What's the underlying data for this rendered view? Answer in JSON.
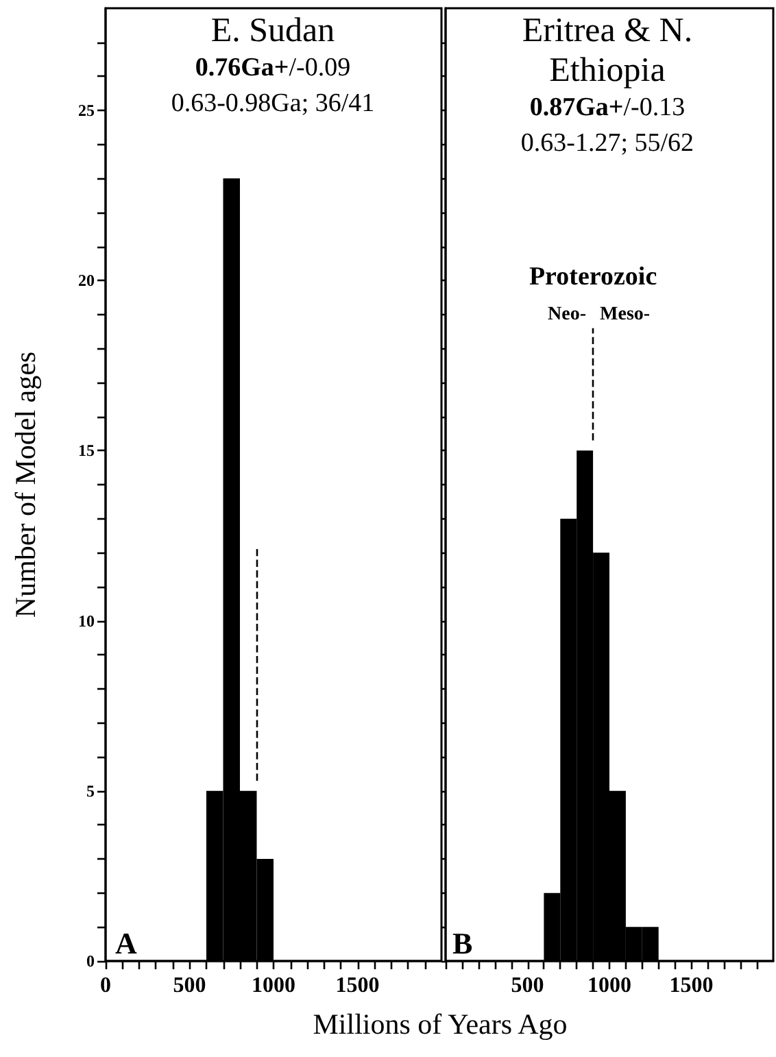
{
  "chart_data": [
    {
      "type": "histogram",
      "title": "E. Sudan",
      "subtitle": "0.76Ga+/-0.09",
      "ylabel": "Number of Model ages",
      "xlabel": "Millions of Years Ago",
      "annotations": [
        "0.63-0.98Ga; 36/41",
        "A"
      ],
      "bins": [
        600,
        700,
        800,
        900,
        1000
      ],
      "values": [
        5,
        23,
        5,
        3
      ],
      "color": "#000000",
      "xlim": [
        0,
        2000
      ],
      "xticks": [
        0,
        {
          "value": 100,
          "label": null
        },
        {
          "value": 200,
          "label": null
        },
        {
          "value": 300,
          "label": null
        },
        {
          "value": 400,
          "label": null
        },
        500,
        {
          "value": 600,
          "label": null
        },
        {
          "value": 700,
          "label": null
        },
        {
          "value": 800,
          "label": null
        },
        {
          "value": 900,
          "label": null
        },
        1000,
        {
          "value": 1100,
          "label": null
        },
        {
          "value": 1200,
          "label": null
        },
        {
          "value": 1300,
          "label": null
        },
        {
          "value": 1400,
          "label": null
        },
        1500,
        {
          "value": 1600,
          "label": null
        },
        {
          "value": 1700,
          "label": null
        },
        {
          "value": 1800,
          "label": null
        },
        {
          "value": 1900,
          "label": null
        }
      ],
      "ylim": [
        0,
        28
      ],
      "yticks": [
        0,
        {
          "value": 1,
          "label": null
        },
        {
          "value": 2,
          "label": null
        },
        {
          "value": 3,
          "label": null
        },
        {
          "value": 4,
          "label": null
        },
        5,
        {
          "value": 6,
          "label": null
        },
        {
          "value": 7,
          "label": null
        },
        {
          "value": 8,
          "label": null
        },
        {
          "value": 9,
          "label": null
        },
        10,
        {
          "value": 11,
          "label": null
        },
        {
          "value": 12,
          "label": null
        },
        {
          "value": 13,
          "label": null
        },
        {
          "value": 14,
          "label": null
        },
        15,
        {
          "value": 16,
          "label": null
        },
        {
          "value": 17,
          "label": null
        },
        {
          "value": 18,
          "label": null
        },
        {
          "value": 19,
          "label": null
        },
        20,
        {
          "value": 21,
          "label": null
        },
        {
          "value": 22,
          "label": null
        },
        {
          "value": 23,
          "label": null
        },
        {
          "value": 24,
          "label": null
        },
        25,
        {
          "value": 26,
          "label": null
        },
        {
          "value": 27,
          "label": null
        }
      ],
      "ref_lines": [
        {
          "axis": "x",
          "value": 900,
          "line_style": "dashed"
        }
      ],
      "grid": false
    },
    {
      "type": "histogram",
      "title": "Eritrea & N. Ethiopia",
      "subtitle": "0.87Ga+/-0.13",
      "tick_labels": "x",
      "annotations": [
        "0.63-1.27; 55/62",
        "B",
        "Proterozoic",
        "Neo-",
        "Meso-"
      ],
      "bins": [
        600,
        700,
        800,
        900,
        1000,
        1100,
        1200,
        1300
      ],
      "values": [
        2,
        13,
        15,
        12,
        5,
        1,
        1
      ],
      "color": "#000000",
      "xlim": [
        0,
        2000
      ],
      "xticks": [
        {
          "value": 0,
          "label": null
        },
        {
          "value": 100,
          "label": null
        },
        {
          "value": 200,
          "label": null
        },
        {
          "value": 300,
          "label": null
        },
        {
          "value": 400,
          "label": null
        },
        500,
        {
          "value": 600,
          "label": null
        },
        {
          "value": 700,
          "label": null
        },
        {
          "value": 800,
          "label": null
        },
        {
          "value": 900,
          "label": null
        },
        1000,
        {
          "value": 1100,
          "label": null
        },
        {
          "value": 1200,
          "label": null
        },
        {
          "value": 1300,
          "label": null
        },
        {
          "value": 1400,
          "label": null
        },
        1500,
        {
          "value": 1600,
          "label": null
        },
        {
          "value": 1700,
          "label": null
        },
        {
          "value": 1800,
          "label": null
        },
        {
          "value": 1900,
          "label": null
        }
      ],
      "ylim": [
        0,
        28
      ],
      "yticks": [
        0,
        {
          "value": 1,
          "label": null
        },
        {
          "value": 2,
          "label": null
        },
        {
          "value": 3,
          "label": null
        },
        {
          "value": 4,
          "label": null
        },
        5,
        {
          "value": 6,
          "label": null
        },
        {
          "value": 7,
          "label": null
        },
        {
          "value": 8,
          "label": null
        },
        {
          "value": 9,
          "label": null
        },
        10,
        {
          "value": 11,
          "label": null
        },
        {
          "value": 12,
          "label": null
        },
        {
          "value": 13,
          "label": null
        },
        {
          "value": 14,
          "label": null
        },
        15,
        {
          "value": 16,
          "label": null
        },
        {
          "value": 17,
          "label": null
        },
        {
          "value": 18,
          "label": null
        },
        {
          "value": 19,
          "label": null
        },
        20,
        {
          "value": 21,
          "label": null
        },
        {
          "value": 22,
          "label": null
        },
        {
          "value": 23,
          "label": null
        },
        {
          "value": 24,
          "label": null
        },
        25,
        {
          "value": 26,
          "label": null
        },
        {
          "value": 27,
          "label": null
        }
      ],
      "ref_lines": [
        {
          "axis": "x",
          "value": 900,
          "line_style": "dashed"
        }
      ],
      "grid": false
    }
  ]
}
